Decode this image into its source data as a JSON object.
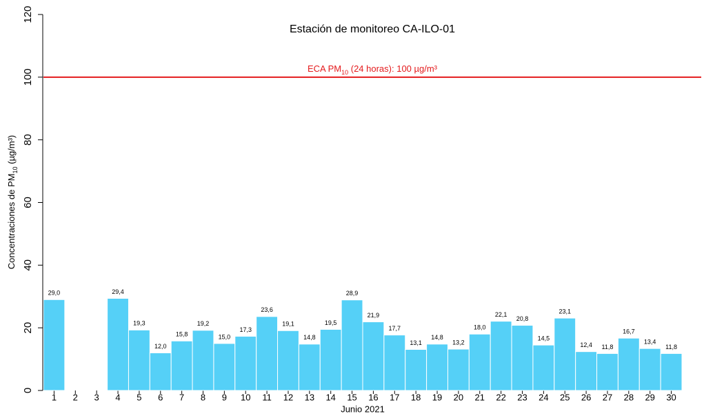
{
  "chart_data": {
    "type": "bar",
    "title": "Estación de monitoreo  CA-ILO-01",
    "x_label": "Junio 2021",
    "y_label": [
      "Concentraciones de PM",
      "10",
      " (µg/m³)"
    ],
    "categories": [
      "1",
      "2",
      "3",
      "4",
      "5",
      "6",
      "7",
      "8",
      "9",
      "10",
      "11",
      "12",
      "13",
      "14",
      "15",
      "16",
      "17",
      "18",
      "19",
      "20",
      "21",
      "22",
      "23",
      "24",
      "25",
      "26",
      "27",
      "28",
      "29",
      "30"
    ],
    "values": [
      29.0,
      null,
      null,
      29.4,
      19.3,
      12.0,
      15.8,
      19.2,
      15.0,
      17.3,
      23.6,
      19.1,
      14.8,
      19.5,
      28.9,
      21.9,
      17.7,
      13.1,
      14.8,
      13.2,
      18.0,
      22.1,
      20.8,
      14.5,
      23.1,
      12.4,
      11.8,
      16.7,
      13.4,
      11.8
    ],
    "value_labels": [
      "29,0",
      null,
      null,
      "29,4",
      "19,3",
      "12,0",
      "15,8",
      "19,2",
      "15,0",
      "17,3",
      "23,6",
      "19,1",
      "14,8",
      "19,5",
      "28,9",
      "21,9",
      "17,7",
      "13,1",
      "14,8",
      "13,2",
      "18,0",
      "22,1",
      "20,8",
      "14,5",
      "23,1",
      "12,4",
      "11,8",
      "16,7",
      "13,4",
      "11,8"
    ],
    "color": "#55d0f7",
    "ylim": [
      0,
      120
    ],
    "yticks": [
      0,
      20,
      40,
      60,
      80,
      100,
      120
    ],
    "reference_line": {
      "value": 100,
      "color": "#e41a1c",
      "label": [
        "ECA PM",
        "10",
        " (24 horas): 100 µg/m³"
      ]
    }
  }
}
